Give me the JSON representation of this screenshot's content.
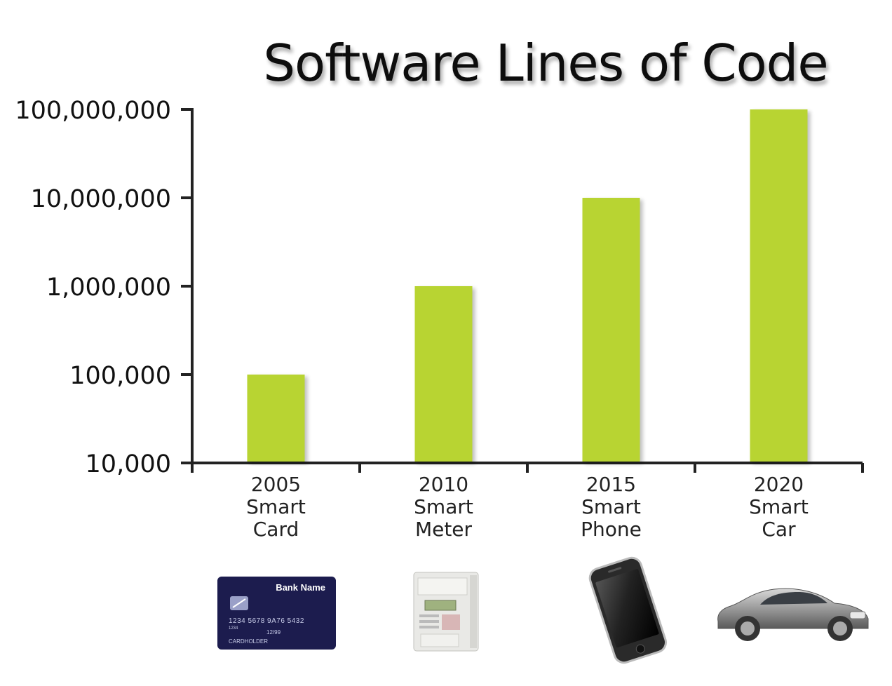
{
  "chart_data": {
    "type": "bar",
    "title": "Software Lines of Code",
    "xlabel": "",
    "ylabel": "",
    "yscale": "log",
    "ylim": [
      10000,
      100000000
    ],
    "yticks": [
      10000,
      100000,
      1000000,
      10000000,
      100000000
    ],
    "ytick_labels": [
      "10,000",
      "100,000",
      "1,000,000",
      "10,000,000",
      "100,000,000"
    ],
    "categories": [
      {
        "year": "2005",
        "line1": "Smart",
        "line2": "Card"
      },
      {
        "year": "2010",
        "line1": "Smart",
        "line2": "Meter"
      },
      {
        "year": "2015",
        "line1": "Smart",
        "line2": "Phone"
      },
      {
        "year": "2020",
        "line1": "Smart",
        "line2": "Car"
      }
    ],
    "values": [
      100000,
      1000000,
      10000000,
      100000000
    ],
    "bar_color": "#b8d432",
    "grid": false,
    "legend": "none"
  },
  "icons": {
    "card": {
      "name": "credit-card-icon",
      "bank_name": "Bank Name",
      "number": "1234  5678  9A76  5432",
      "small_number": "1234",
      "expiry": "12/99",
      "holder": "CARDHOLDER",
      "color": "#1c1c4e"
    },
    "meter": {
      "name": "electricity-meter-icon"
    },
    "phone": {
      "name": "smartphone-icon"
    },
    "car": {
      "name": "car-icon"
    }
  }
}
